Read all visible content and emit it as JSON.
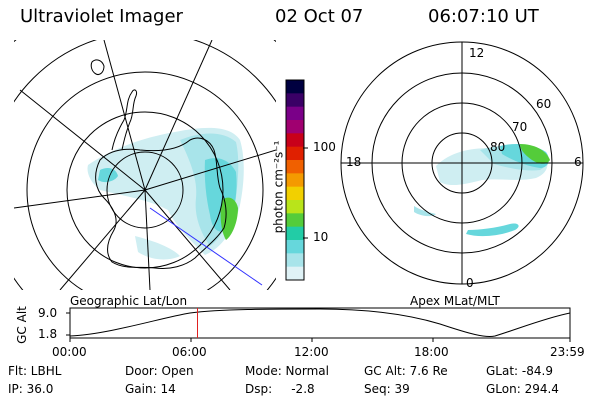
{
  "header": {
    "instrument": "Ultraviolet Imager",
    "date": "02 Oct 07",
    "time": "06:07:10 UT"
  },
  "colorbar": {
    "label": "photon cm⁻²s⁻¹",
    "ticks": [
      "100",
      "10"
    ],
    "colors": [
      "#000040",
      "#3a0066",
      "#7a0088",
      "#a00070",
      "#c8001a",
      "#e02000",
      "#f06000",
      "#f49a00",
      "#f2d000",
      "#b9e41a",
      "#54cc3a",
      "#22cca6",
      "#66d7dc",
      "#a8e4ea",
      "#dff2f6"
    ]
  },
  "left_panel": {
    "caption": "Geographic Lat/Lon"
  },
  "right_panel": {
    "caption": "Apex MLat/MLT",
    "mlt_labels": {
      "top": "12",
      "left": "18",
      "right": "6",
      "bottom": "0"
    },
    "lat_labels": [
      "60",
      "70",
      "80"
    ]
  },
  "altitude_plot": {
    "ylabel": "GC Alt",
    "yticks": [
      "9.0",
      "1.8"
    ],
    "xticks": [
      "00:00",
      "06:00",
      "12:00",
      "18:00",
      "23:59"
    ],
    "current_time_hours": 6.12
  },
  "info": {
    "filter": "Flt: LBHL",
    "ip": "IP: 36.0",
    "door": "Door: Open",
    "gain": "Gain: 14",
    "mode": "Mode: Normal",
    "dsp": "Dsp:     -2.8",
    "gc_alt": "GC Alt: 7.6 Re",
    "seq": "Seq: 39",
    "glat": "GLat: -84.9",
    "glon": "GLon: 294.4"
  }
}
